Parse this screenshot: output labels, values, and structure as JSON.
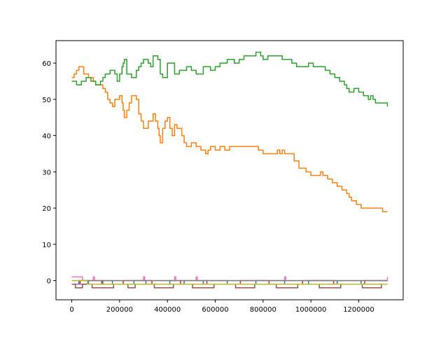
{
  "chart_data": {
    "type": "line",
    "title": "",
    "xlabel": "",
    "ylabel": "",
    "xlim": [
      -66000,
      1386000
    ],
    "ylim": [
      -5.3,
      66.2
    ],
    "grid": false,
    "legend": "none",
    "x_ticks": [
      {
        "value": 0,
        "label": "0"
      },
      {
        "value": 200000,
        "label": "200000"
      },
      {
        "value": 400000,
        "label": "400000"
      },
      {
        "value": 600000,
        "label": "600000"
      },
      {
        "value": 800000,
        "label": "800000"
      },
      {
        "value": 1000000,
        "label": "1000000"
      },
      {
        "value": 1200000,
        "label": "1200000"
      }
    ],
    "y_ticks": [
      {
        "value": 0,
        "label": "0"
      },
      {
        "value": 10,
        "label": "10"
      },
      {
        "value": 20,
        "label": "20"
      },
      {
        "value": 30,
        "label": "30"
      },
      {
        "value": 40,
        "label": "40"
      },
      {
        "value": 50,
        "label": "50"
      },
      {
        "value": 60,
        "label": "60"
      }
    ],
    "series": [
      {
        "color": "#1f77b4",
        "x": [
          0,
          20000,
          30000,
          60000,
          70000,
          120000,
          130000,
          160000,
          170000,
          250000,
          260000,
          300000,
          310000,
          400000,
          410000,
          460000,
          470000,
          540000,
          550000,
          640000,
          650000,
          760000,
          770000,
          880000,
          890000,
          980000,
          990000,
          1100000,
          1110000,
          1200000,
          1210000,
          1320000
        ],
        "y": [
          -1,
          -1,
          0,
          0,
          -1,
          -1,
          0,
          0,
          -1,
          -1,
          0,
          0,
          -1,
          -1,
          0,
          0,
          -1,
          -1,
          0,
          0,
          -1,
          -1,
          0,
          0,
          -1,
          -1,
          0,
          0,
          -1,
          -1,
          0,
          0
        ]
      },
      {
        "color": "#ff7f0e",
        "x": [
          0,
          10000,
          20000,
          30000,
          50000,
          70000,
          90000,
          100000,
          120000,
          130000,
          140000,
          150000,
          160000,
          170000,
          180000,
          200000,
          210000,
          215000,
          220000,
          230000,
          240000,
          250000,
          270000,
          280000,
          290000,
          300000,
          320000,
          340000,
          350000,
          360000,
          365000,
          370000,
          380000,
          390000,
          400000,
          410000,
          420000,
          430000,
          440000,
          460000,
          470000,
          480000,
          500000,
          520000,
          540000,
          560000,
          570000,
          580000,
          600000,
          620000,
          640000,
          660000,
          680000,
          700000,
          750000,
          780000,
          800000,
          840000,
          860000,
          870000,
          880000,
          890000,
          900000,
          930000,
          950000,
          980000,
          1000000,
          1040000,
          1050000,
          1070000,
          1090000,
          1110000,
          1130000,
          1150000,
          1160000,
          1170000,
          1190000,
          1210000,
          1240000,
          1270000,
          1300000,
          1320000
        ],
        "y": [
          56,
          57,
          58,
          59,
          57,
          56,
          55,
          54,
          54,
          53,
          52,
          50,
          49,
          48,
          50,
          51,
          49,
          47,
          45,
          47,
          49,
          51,
          50,
          46,
          44,
          42,
          44,
          46,
          44,
          42,
          40,
          38,
          42,
          44,
          45,
          42,
          40,
          43,
          42,
          40,
          38,
          37,
          38,
          37,
          36,
          35,
          36,
          37,
          36,
          37,
          36,
          37,
          37,
          37,
          37,
          36,
          35,
          35,
          36,
          35,
          36,
          35,
          35,
          33,
          31,
          30,
          29,
          30,
          29,
          28,
          27,
          26,
          25,
          24,
          23,
          22,
          21,
          20,
          20,
          20,
          19,
          19
        ]
      },
      {
        "color": "#2ca02c",
        "x": [
          0,
          20000,
          40000,
          60000,
          80000,
          100000,
          120000,
          130000,
          140000,
          160000,
          180000,
          190000,
          200000,
          210000,
          215000,
          220000,
          230000,
          250000,
          270000,
          280000,
          290000,
          300000,
          320000,
          330000,
          340000,
          360000,
          370000,
          380000,
          400000,
          430000,
          450000,
          480000,
          500000,
          520000,
          550000,
          580000,
          590000,
          600000,
          620000,
          650000,
          680000,
          700000,
          720000,
          740000,
          770000,
          790000,
          800000,
          820000,
          850000,
          880000,
          900000,
          920000,
          940000,
          970000,
          990000,
          1010000,
          1030000,
          1060000,
          1080000,
          1100000,
          1120000,
          1140000,
          1150000,
          1160000,
          1180000,
          1200000,
          1220000,
          1240000,
          1250000,
          1260000,
          1270000,
          1300000,
          1320000
        ],
        "y": [
          55,
          54,
          55,
          56,
          55,
          54,
          55,
          56,
          57,
          58,
          57,
          55,
          57,
          59,
          60,
          61,
          57,
          56,
          58,
          59,
          60,
          61,
          60,
          59,
          62,
          61,
          57,
          56,
          60,
          57,
          58,
          59,
          58,
          57,
          59,
          58,
          58,
          59,
          60,
          61,
          60,
          61,
          62,
          62,
          63,
          62,
          61,
          62,
          62,
          61,
          61,
          60,
          59,
          59,
          60,
          59,
          59,
          58,
          57,
          56,
          55,
          54,
          53,
          52,
          53,
          52,
          51,
          50,
          51,
          50,
          49,
          49,
          48
        ]
      },
      {
        "color": "#d62728",
        "x": [
          0,
          30000,
          35000,
          120000,
          125000,
          210000,
          215000,
          330000,
          335000,
          450000,
          455000,
          560000,
          565000,
          700000,
          705000,
          820000,
          825000,
          960000,
          965000,
          1090000,
          1095000,
          1220000,
          1225000,
          1320000
        ],
        "y": [
          -1,
          -1,
          0,
          0,
          -1,
          -1,
          0,
          0,
          -1,
          -1,
          0,
          0,
          -1,
          -1,
          0,
          0,
          -1,
          -1,
          0,
          0,
          -1,
          -1,
          0,
          0
        ]
      },
      {
        "color": "#9467bd",
        "x": [
          0,
          1320000
        ],
        "y": [
          -1,
          -1
        ]
      },
      {
        "color": "#8c564b",
        "x": [
          0,
          10000,
          15000,
          40000,
          45000,
          80000,
          85000,
          170000,
          175000,
          230000,
          235000,
          260000,
          265000,
          340000,
          345000,
          420000,
          425000,
          500000,
          505000,
          590000,
          595000,
          680000,
          685000,
          760000,
          765000,
          850000,
          855000,
          940000,
          945000,
          1030000,
          1035000,
          1120000,
          1125000,
          1210000,
          1215000,
          1290000,
          1295000,
          1320000
        ],
        "y": [
          -1,
          -1,
          -2,
          -2,
          -1,
          -1,
          -2,
          -2,
          -1,
          -1,
          -2,
          -2,
          -1,
          -1,
          -2,
          -2,
          -1,
          -1,
          -2,
          -2,
          -1,
          -1,
          -2,
          -2,
          -1,
          -1,
          -2,
          -2,
          -1,
          -1,
          -2,
          -2,
          -1,
          -1,
          -2,
          -2,
          -1,
          -1
        ]
      },
      {
        "color": "#e377c2",
        "x": [
          0,
          40000,
          45000,
          90000,
          95000,
          300000,
          305000,
          430000,
          435000,
          520000,
          525000,
          890000,
          895000,
          1320000
        ],
        "y": [
          1,
          1,
          0,
          1,
          0,
          1,
          0,
          1,
          0,
          1,
          0,
          1,
          0,
          1
        ]
      },
      {
        "color": "#7f7f7f",
        "x": [
          0,
          1320000
        ],
        "y": [
          0,
          0
        ]
      },
      {
        "color": "#bcbd22",
        "x": [
          0,
          60000,
          65000,
          1320000
        ],
        "y": [
          0,
          0,
          -1,
          -1
        ]
      }
    ]
  }
}
